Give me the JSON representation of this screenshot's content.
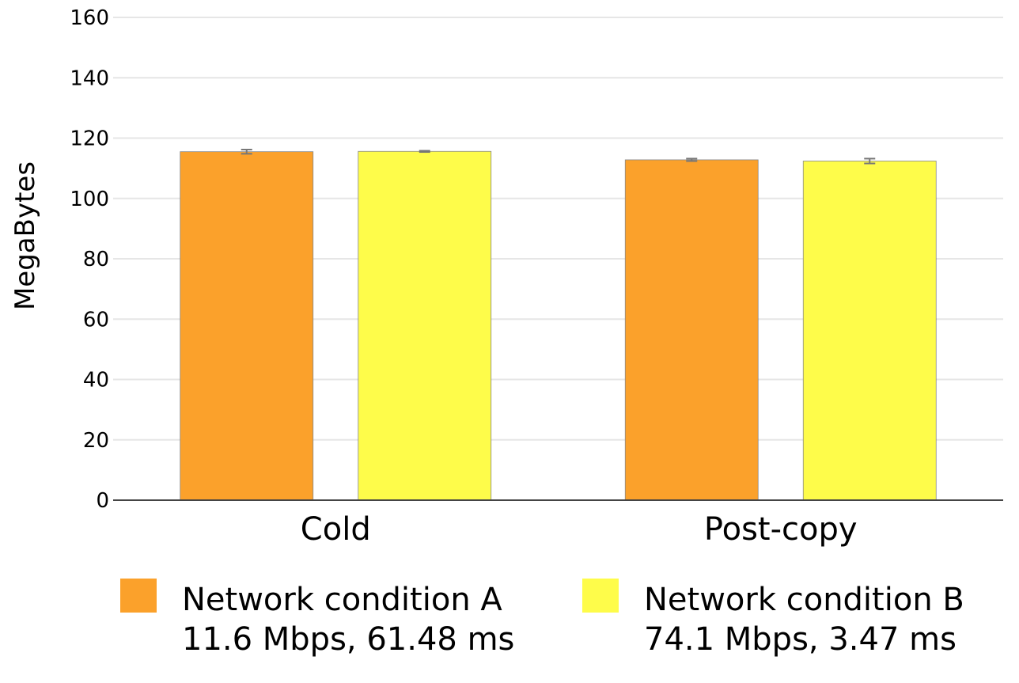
{
  "chart_data": {
    "type": "bar",
    "categories": [
      "Cold",
      "Post-copy"
    ],
    "series": [
      {
        "name": "Network condition A",
        "subtitle": "11.6 Mbps, 61.48 ms",
        "values": [
          115.5,
          112.8
        ],
        "errors": [
          0.7,
          0.4
        ],
        "color": "#FBA12B"
      },
      {
        "name": "Network condition B",
        "subtitle": "74.1 Mbps, 3.47 ms",
        "values": [
          115.6,
          112.4
        ],
        "errors": [
          0.2,
          0.8
        ],
        "color": "#FEFC4A"
      }
    ],
    "xlabel": "",
    "ylabel": "MegaBytes",
    "ylim": [
      0,
      160
    ],
    "yticks": [
      0,
      20,
      40,
      60,
      80,
      100,
      120,
      140,
      160
    ],
    "grid": true,
    "legend_position": "bottom",
    "colors": {
      "grid": "#E6E6E6",
      "axis": "#444444",
      "bar_edge": "#888888",
      "error_bar": "#777777"
    }
  }
}
